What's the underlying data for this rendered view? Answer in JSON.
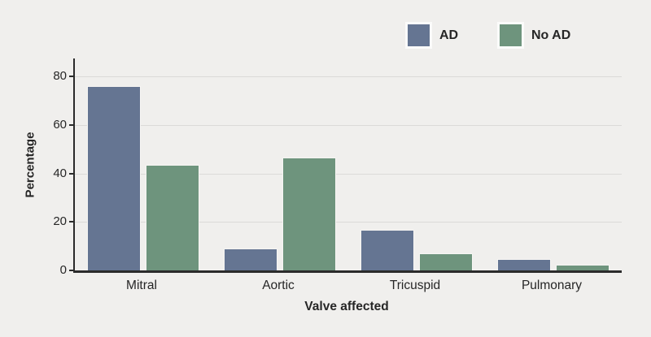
{
  "figure": {
    "background": "#f0efed",
    "axis_color": "#2b2b2b",
    "gridline_color": "#dbdad8",
    "text_color": "#262626"
  },
  "legend": {
    "items": [
      {
        "label": "AD",
        "color": "#657592"
      },
      {
        "label": "No AD",
        "color": "#6e947d"
      }
    ]
  },
  "chart_data": {
    "type": "bar",
    "title": "",
    "xlabel": "Valve affected",
    "ylabel": "Percentage",
    "categories": [
      "Mitral",
      "Aortic",
      "Tricuspid",
      "Pulmonary"
    ],
    "series": [
      {
        "name": "AD",
        "color": "#657592",
        "values": [
          76,
          8.9,
          16.6,
          4.7
        ]
      },
      {
        "name": "No AD",
        "color": "#6e947d",
        "values": [
          43.6,
          46.5,
          6.9,
          2.4
        ]
      }
    ],
    "yticks": [
      0,
      20,
      40,
      60,
      80
    ],
    "ylim": [
      0,
      87.4
    ],
    "grid": true,
    "legend_position": "top"
  }
}
